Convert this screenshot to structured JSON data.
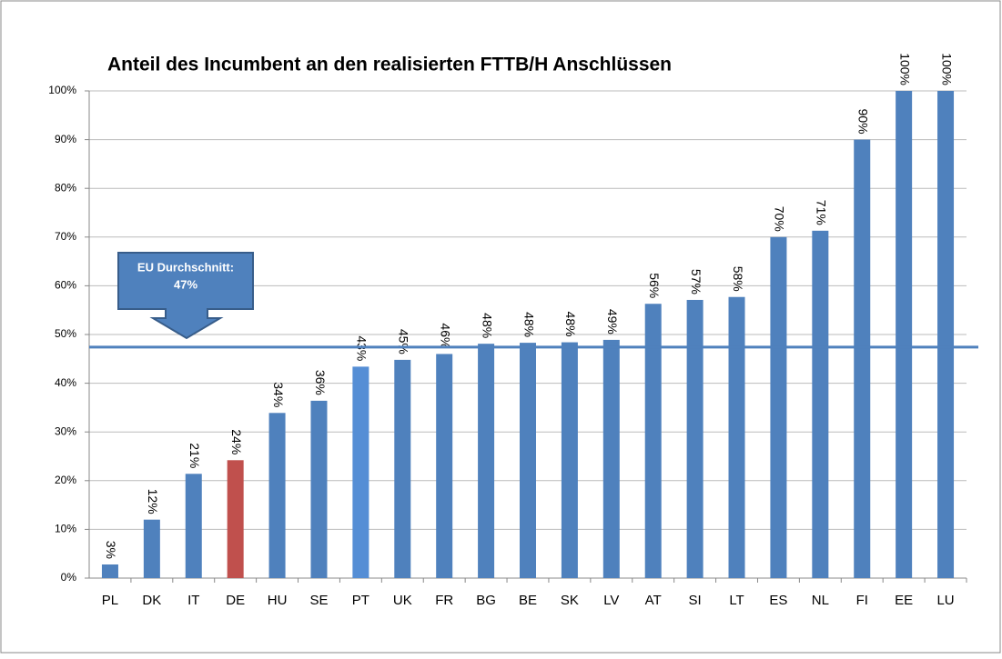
{
  "chart_data": {
    "type": "bar",
    "title": "Anteil des Incumbent an den realisierten FTTB/H Anschlüssen",
    "categories": [
      "PL",
      "DK",
      "IT",
      "DE",
      "HU",
      "SE",
      "PT",
      "UK",
      "FR",
      "BG",
      "BE",
      "SK",
      "LV",
      "AT",
      "SI",
      "LT",
      "ES",
      "NL",
      "FI",
      "EE",
      "LU"
    ],
    "values": [
      2.8,
      12,
      21.4,
      24.2,
      33.9,
      36.4,
      43.4,
      44.8,
      46,
      48.1,
      48.3,
      48.4,
      48.9,
      56.3,
      57.1,
      57.7,
      70,
      71.3,
      90,
      100,
      100
    ],
    "value_labels": [
      "3%",
      "12%",
      "21%",
      "24%",
      "34%",
      "36%",
      "43%",
      "45%",
      "46%",
      "48%",
      "48%",
      "48%",
      "49%",
      "56%",
      "57%",
      "58%",
      "70%",
      "71%",
      "90%",
      "100%",
      "100%"
    ],
    "colors": [
      "#4f81bd",
      "#4f81bd",
      "#4f81bd",
      "#c0504d",
      "#4f81bd",
      "#4f81bd",
      "#558ed5",
      "#4f81bd",
      "#4f81bd",
      "#4f81bd",
      "#4f81bd",
      "#4f81bd",
      "#4f81bd",
      "#4f81bd",
      "#4f81bd",
      "#4f81bd",
      "#4f81bd",
      "#4f81bd",
      "#4f81bd",
      "#4f81bd",
      "#4f81bd"
    ],
    "ylim": [
      0,
      100
    ],
    "yticks": [
      {
        "value": 0,
        "label": "0%"
      },
      {
        "value": 10,
        "label": "10%"
      },
      {
        "value": 20,
        "label": "20%"
      },
      {
        "value": 30,
        "label": "30%"
      },
      {
        "value": 40,
        "label": "40%"
      },
      {
        "value": 50,
        "label": "50%"
      },
      {
        "value": 60,
        "label": "60%"
      },
      {
        "value": 70,
        "label": "70%"
      },
      {
        "value": 80,
        "label": "80%"
      },
      {
        "value": 90,
        "label": "90%"
      },
      {
        "value": 100,
        "label": "100%"
      }
    ],
    "grid": true,
    "reference_line": {
      "value": 47.4,
      "label": "EU Durchschnitt:",
      "value_label": "47%",
      "color": "#4f81bd"
    }
  }
}
